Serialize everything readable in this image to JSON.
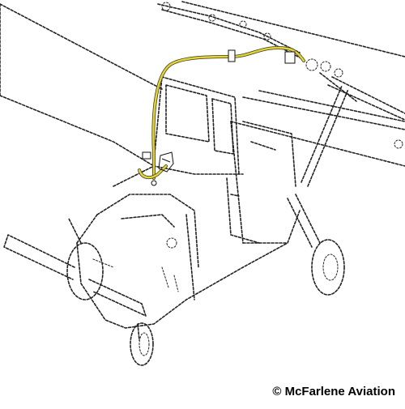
{
  "credit": {
    "text": "© McFarlene Aviation"
  },
  "colors": {
    "highlight": "#e3d23a",
    "line": "#222222",
    "background": "#ffffff"
  }
}
